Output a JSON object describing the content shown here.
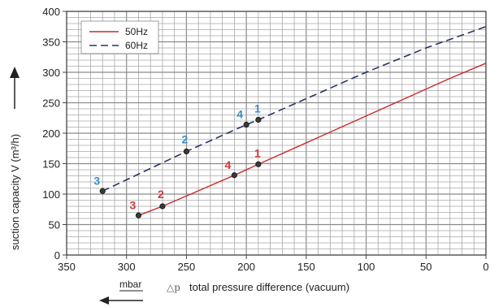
{
  "chart_data": {
    "type": "line",
    "ylabel": "suction capacity V (m³/h)",
    "xlabel": "total pressure difference (vacuum)",
    "xunit": "mbar",
    "dp_symbol": "△p",
    "xlim": [
      350,
      0
    ],
    "ylim": [
      0,
      400
    ],
    "xticks": [
      350,
      300,
      250,
      200,
      150,
      100,
      50,
      0
    ],
    "yticks": [
      0,
      50,
      100,
      150,
      200,
      250,
      300,
      350,
      400
    ],
    "xtick_labels": [
      "350",
      "300",
      "250",
      "200",
      "150",
      "100",
      "50",
      "0"
    ],
    "ytick_labels": [
      "0",
      "50",
      "100",
      "150",
      "200",
      "250",
      "300",
      "350",
      "400"
    ],
    "grid": true,
    "legend_position": "top-left",
    "series": [
      {
        "name": "50Hz",
        "color": "#cc2a2a",
        "dash": "solid",
        "x": [
          290,
          270,
          210,
          190,
          30,
          0
        ],
        "y": [
          65,
          80,
          131,
          149,
          290,
          315
        ],
        "points": [
          {
            "label": "3",
            "x": 290,
            "y": 65
          },
          {
            "label": "2",
            "x": 270,
            "y": 80
          },
          {
            "label": "4",
            "x": 210,
            "y": 131
          },
          {
            "label": "1",
            "x": 190,
            "y": 149
          }
        ]
      },
      {
        "name": "60Hz",
        "color": "#2a3566",
        "dash": "dashed",
        "x": [
          320,
          250,
          200,
          190,
          100,
          50,
          0
        ],
        "y": [
          105,
          170,
          214,
          222,
          300,
          340,
          375
        ],
        "points": [
          {
            "label": "3",
            "x": 320,
            "y": 105
          },
          {
            "label": "2",
            "x": 250,
            "y": 170
          },
          {
            "label": "4",
            "x": 200,
            "y": 214
          },
          {
            "label": "1",
            "x": 190,
            "y": 222
          }
        ]
      }
    ]
  }
}
